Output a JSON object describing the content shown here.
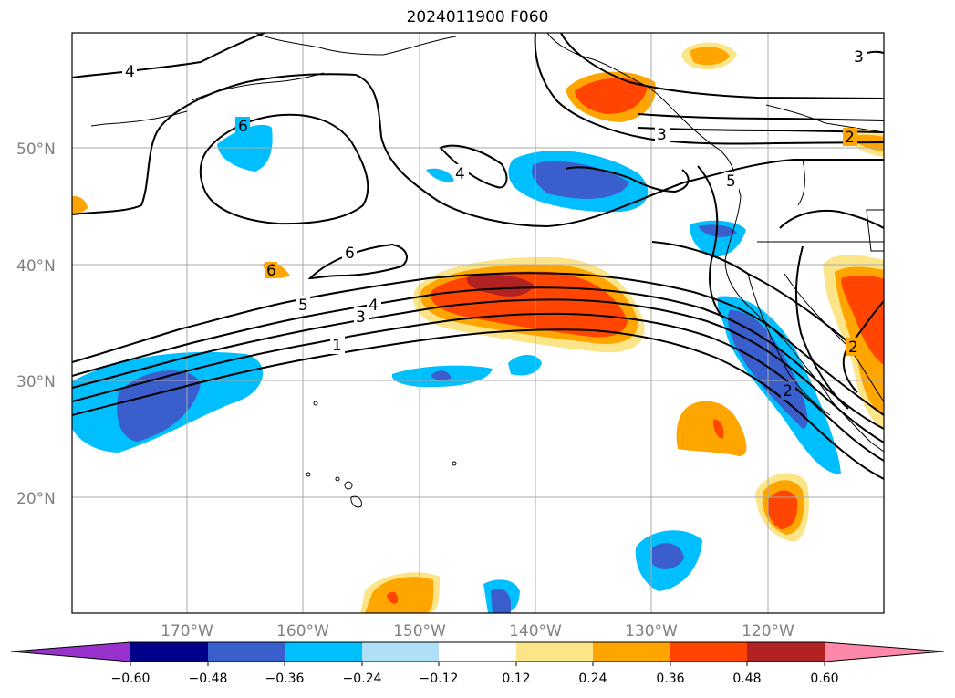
{
  "title": "2024011900 F060",
  "map": {
    "latitude_labels": [
      "50°N",
      "40°N",
      "30°N",
      "20°N"
    ],
    "longitude_labels": [
      "170°W",
      "160°W",
      "150°W",
      "140°W",
      "130°W",
      "120°W"
    ],
    "contour_labels": [
      "4",
      "6",
      "6",
      "4",
      "6",
      "5",
      "4",
      "3",
      "1",
      "3",
      "3",
      "2",
      "5",
      "2",
      "2"
    ]
  },
  "colorbar": {
    "tick_labels": [
      "−0.60",
      "−0.48",
      "−0.36",
      "−0.24",
      "−0.12",
      "0.12",
      "0.24",
      "0.36",
      "0.48",
      "0.60"
    ],
    "colors": [
      "#9932cc",
      "#00008b",
      "#3a5fcd",
      "#00bfff",
      "#b0e0f8",
      "#ffffff",
      "#fce588",
      "#ffa500",
      "#ff4500",
      "#b22222",
      "#ff88aa"
    ]
  }
}
